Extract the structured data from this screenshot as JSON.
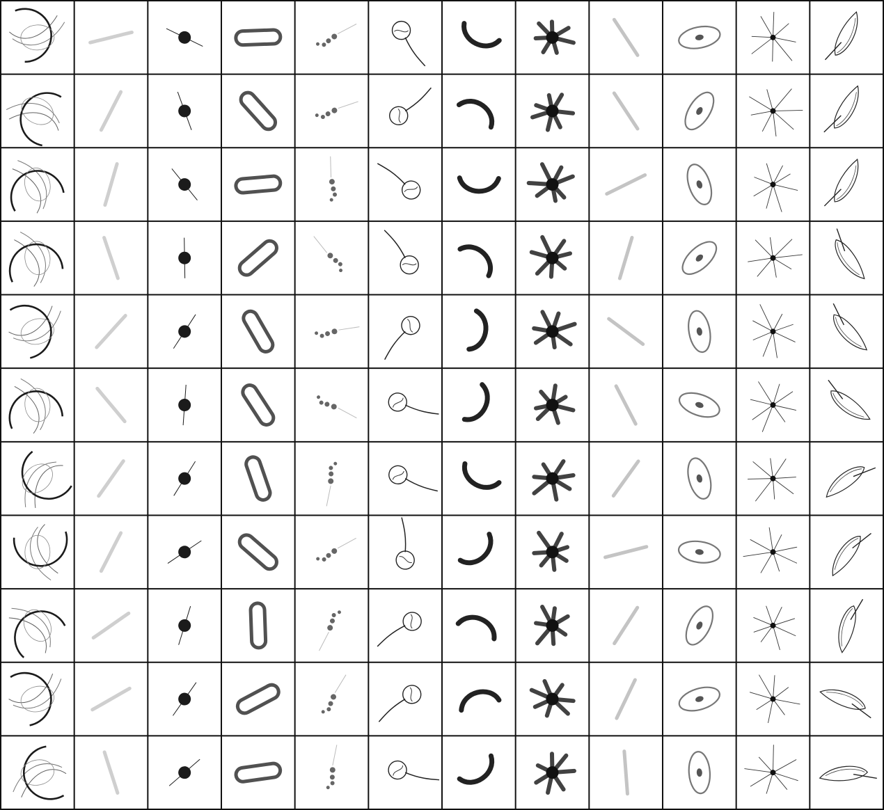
{
  "grid": {
    "rows": 11,
    "cols": 12,
    "background": "#ffffff",
    "line_color": "#111111",
    "ink_color": "#1b1b1b",
    "column_glyphs": [
      "arc-loop-glyph",
      "faint-streak-glyph",
      "blob-spike-glyph",
      "ring-bar-glyph",
      "dotted-chain-glyph",
      "circle-stalk-glyph",
      "hook-arc-glyph",
      "splat-star-glyph",
      "faint-rod-glyph",
      "ellipse-dot-glyph",
      "star-burst-glyph",
      "leaf-sketch-glyph"
    ]
  }
}
